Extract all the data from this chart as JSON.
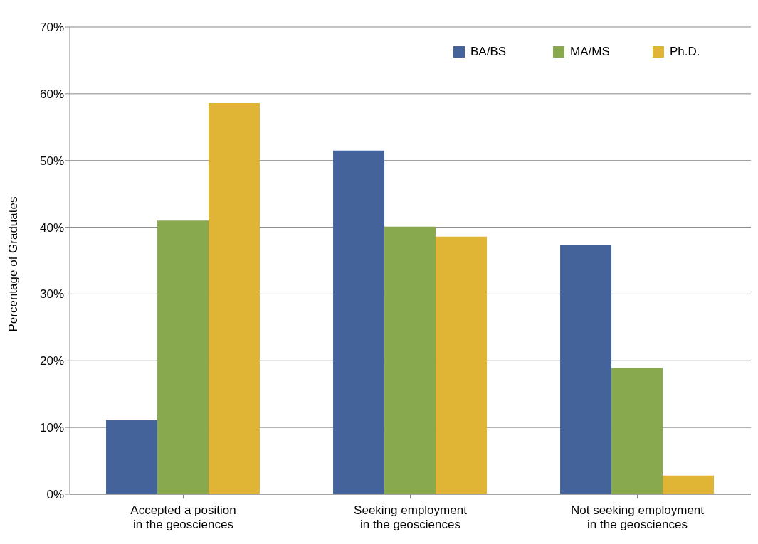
{
  "chart_data": {
    "type": "bar",
    "ylabel": "Percentage of Graduates",
    "categories": [
      "Accepted a position\nin the geosciences",
      "Seeking employment\nin the geosciences",
      "Not seeking employment\nin the geosciences"
    ],
    "series": [
      {
        "name": "BA/BS",
        "color": "#43639a",
        "values": [
          11.1,
          51.5,
          37.4
        ]
      },
      {
        "name": "MA/MS",
        "color": "#88a94e",
        "values": [
          41.0,
          40.1,
          18.9
        ]
      },
      {
        "name": "Ph.D.",
        "color": "#e0b535",
        "values": [
          58.6,
          38.6,
          2.8
        ]
      }
    ],
    "ylim": [
      0,
      70
    ],
    "yticks": [
      {
        "value": 0,
        "label": "0%"
      },
      {
        "value": 10,
        "label": "10%"
      },
      {
        "value": 20,
        "label": "20%"
      },
      {
        "value": 30,
        "label": "30%"
      },
      {
        "value": 40,
        "label": "40%"
      },
      {
        "value": 50,
        "label": "50%"
      },
      {
        "value": 60,
        "label": "60%"
      },
      {
        "value": 70,
        "label": "70%"
      }
    ],
    "grid": "y",
    "legend": "top right"
  }
}
